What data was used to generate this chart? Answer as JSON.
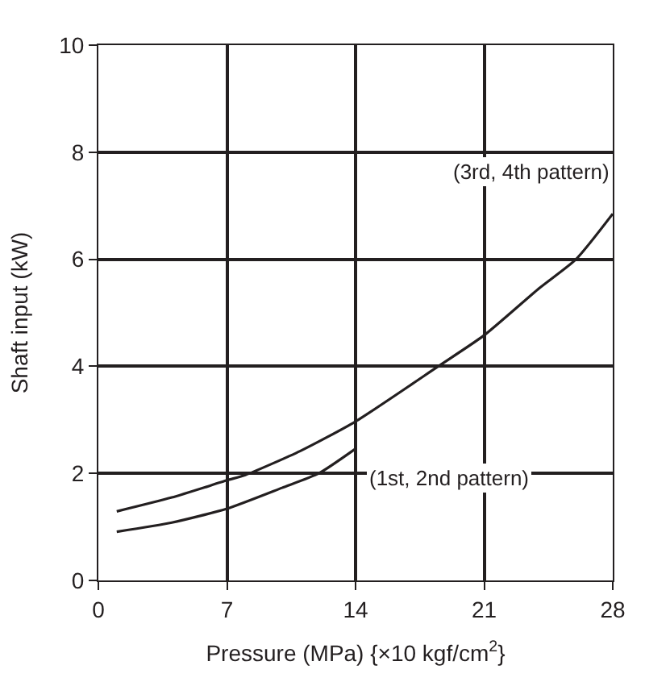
{
  "chart_data": {
    "type": "line",
    "xlabel": "Pressure (MPa) {×10 kgf/cm$^{2}$}",
    "ylabel": "Shaft input (kW)",
    "xlim": [
      0,
      28
    ],
    "xticks": [
      0,
      7,
      14,
      21,
      28
    ],
    "ylim": [
      0,
      10
    ],
    "yticks": [
      0,
      2,
      4,
      6,
      8,
      10
    ],
    "grid": true,
    "legend": false,
    "marker": "none",
    "line_style": "solid",
    "series": [
      {
        "name": "(3rd, 4th pattern)",
        "color": "#231f20",
        "x": [
          1,
          4,
          7,
          8,
          11,
          14,
          18.5,
          21,
          24,
          26,
          28
        ],
        "values": [
          1.29,
          1.55,
          1.87,
          1.97,
          2.42,
          2.97,
          4.0,
          4.58,
          5.46,
          6.0,
          6.85
        ]
      },
      {
        "name": "(1st, 2nd pattern)",
        "color": "#231f20",
        "x": [
          1,
          4,
          7,
          10,
          12,
          14
        ],
        "values": [
          0.91,
          1.08,
          1.34,
          1.73,
          2.0,
          2.46
        ]
      }
    ]
  }
}
